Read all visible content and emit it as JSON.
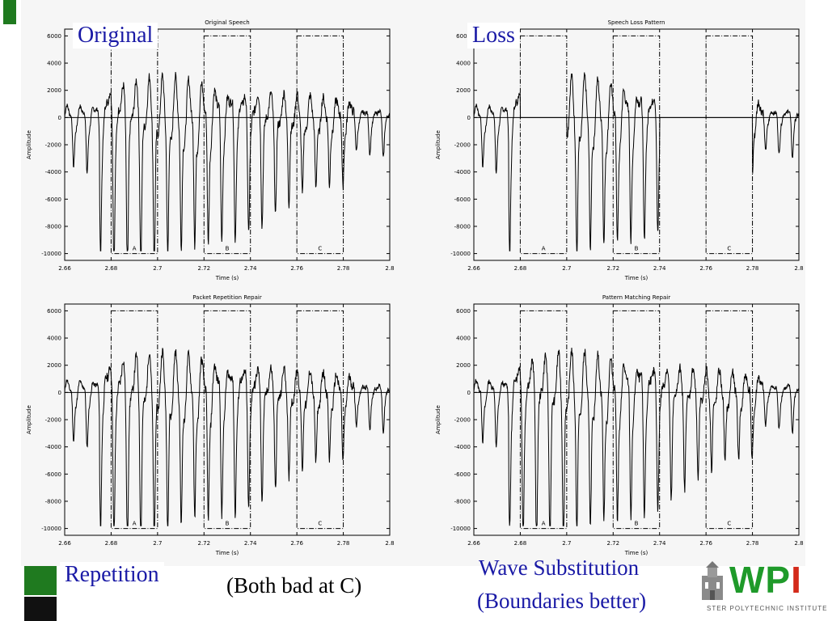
{
  "labels": {
    "original": "Original",
    "loss": "Loss",
    "repetition": "Repetition",
    "wave": "Wave Substitution",
    "note": "(Both bad at C)",
    "boundaries": "(Boundaries better)"
  },
  "logo": {
    "text": "WPI",
    "subtitle": "STER POLYTECHNIC INSTITUTE"
  },
  "colors": {
    "accent_blue": "#1a1aa6",
    "logo_green": "#1f9a2a",
    "logo_red": "#d42a1a",
    "deco_green": "#1f7a1f"
  },
  "chart_data": [
    {
      "type": "line",
      "title": "Original Speech",
      "xlabel": "Time (s)",
      "ylabel": "Amplitude",
      "xlim": [
        2.66,
        2.8
      ],
      "ylim": [
        -10500,
        6500
      ],
      "xticks": [
        "2.66",
        "2.68",
        "2.7",
        "2.72",
        "2.74",
        "2.76",
        "2.78",
        "2.8"
      ],
      "yticks": [
        "6000",
        "4000",
        "2000",
        "0",
        "-2000",
        "-4000",
        "-6000",
        "-8000",
        "-10000"
      ],
      "regions": [
        {
          "label": "A",
          "x0": 2.68,
          "x1": 2.7
        },
        {
          "label": "B",
          "x0": 2.72,
          "x1": 2.74
        },
        {
          "label": "C",
          "x0": 2.76,
          "x1": 2.78
        }
      ],
      "gaps": [],
      "series": [
        {
          "x_start": 2.66,
          "x_end": 2.8,
          "seed": 7
        }
      ]
    },
    {
      "type": "line",
      "title": "Speech Loss Pattern",
      "xlabel": "Time (s)",
      "ylabel": "Amplitude",
      "xlim": [
        2.66,
        2.8
      ],
      "ylim": [
        -10500,
        6500
      ],
      "xticks": [
        "2.66",
        "2.68",
        "2.7",
        "2.72",
        "2.74",
        "2.76",
        "2.78",
        "2.8"
      ],
      "yticks": [
        "6000",
        "4000",
        "2000",
        "0",
        "-2000",
        "-4000",
        "-6000",
        "-8000",
        "-10000"
      ],
      "regions": [
        {
          "label": "A",
          "x0": 2.68,
          "x1": 2.7
        },
        {
          "label": "B",
          "x0": 2.72,
          "x1": 2.74
        },
        {
          "label": "C",
          "x0": 2.76,
          "x1": 2.78
        }
      ],
      "gaps": [
        [
          2.68,
          2.7
        ],
        [
          2.74,
          2.76
        ],
        [
          2.76,
          2.78
        ]
      ],
      "series": [
        {
          "x_start": 2.66,
          "x_end": 2.8,
          "seed": 7
        }
      ]
    },
    {
      "type": "line",
      "title": "Packet Repetition Repair",
      "xlabel": "Time (s)",
      "ylabel": "Amplitude",
      "xlim": [
        2.66,
        2.8
      ],
      "ylim": [
        -10500,
        6500
      ],
      "xticks": [
        "2.66",
        "2.68",
        "2.7",
        "2.72",
        "2.74",
        "2.76",
        "2.78",
        "2.8"
      ],
      "yticks": [
        "6000",
        "4000",
        "2000",
        "0",
        "-2000",
        "-4000",
        "-6000",
        "-8000",
        "-10000"
      ],
      "regions": [
        {
          "label": "A",
          "x0": 2.68,
          "x1": 2.7
        },
        {
          "label": "B",
          "x0": 2.72,
          "x1": 2.74
        },
        {
          "label": "C",
          "x0": 2.76,
          "x1": 2.78
        }
      ],
      "gaps": [],
      "series": [
        {
          "x_start": 2.66,
          "x_end": 2.8,
          "seed": 11
        }
      ]
    },
    {
      "type": "line",
      "title": "Pattern Matching Repair",
      "xlabel": "Time (s)",
      "ylabel": "Amplitude",
      "xlim": [
        2.66,
        2.8
      ],
      "ylim": [
        -10500,
        6500
      ],
      "xticks": [
        "2.66",
        "2.68",
        "2.7",
        "2.72",
        "2.74",
        "2.76",
        "2.78",
        "2.8"
      ],
      "yticks": [
        "6000",
        "4000",
        "2000",
        "0",
        "-2000",
        "-4000",
        "-6000",
        "-8000",
        "-10000"
      ],
      "regions": [
        {
          "label": "A",
          "x0": 2.68,
          "x1": 2.7
        },
        {
          "label": "B",
          "x0": 2.72,
          "x1": 2.74
        },
        {
          "label": "C",
          "x0": 2.76,
          "x1": 2.78
        }
      ],
      "gaps": [],
      "series": [
        {
          "x_start": 2.66,
          "x_end": 2.8,
          "seed": 13
        }
      ]
    }
  ]
}
